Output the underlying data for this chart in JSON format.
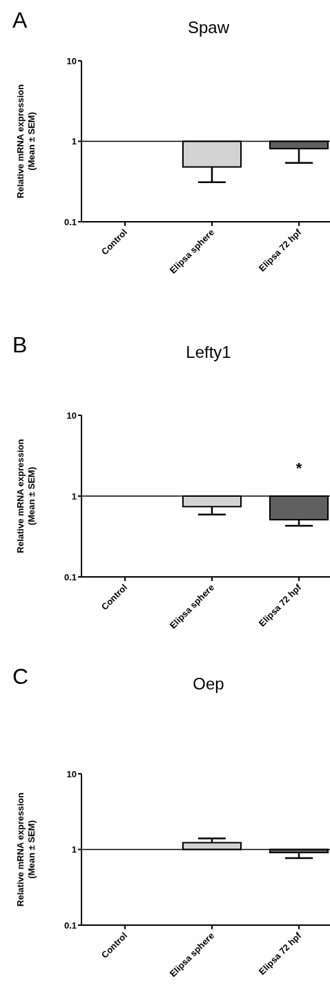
{
  "chart_data": [
    {
      "type": "bar",
      "title": "Spaw",
      "ylabel": "Relative mRNA expression\n(Mean ± SEM)",
      "annotations": [
        "A"
      ],
      "categories": [
        "Control",
        "Elipsa sphere",
        "Elipsa 72 hpf"
      ],
      "base": [
        null,
        1,
        1
      ],
      "values": [
        null,
        -0.52,
        -0.19
      ],
      "colors": [
        null,
        "#d3d3d3",
        "#606060"
      ],
      "errors": [
        null,
        [
          0.31,
          0.48
        ],
        [
          0.54,
          0.81
        ]
      ],
      "ylim": [
        0.1,
        10
      ],
      "yticks": [
        0.1,
        1,
        10
      ],
      "log": true,
      "ref_lines": [
        {
          "axis": "y",
          "value": 1
        }
      ]
    },
    {
      "type": "bar",
      "title": "Lefty1",
      "ylabel": "Relative mRNA expression\n(Mean ± SEM)",
      "annotations": [
        "B",
        "*"
      ],
      "categories": [
        "Control",
        "Elipsa sphere",
        "Elipsa 72 hpf"
      ],
      "base": [
        null,
        1,
        1
      ],
      "values": [
        null,
        -0.26,
        -0.49
      ],
      "colors": [
        null,
        "#d3d3d3",
        "#606060"
      ],
      "errors": [
        null,
        [
          0.59,
          0.74
        ],
        [
          0.43,
          0.51
        ]
      ],
      "ylim": [
        0.1,
        10
      ],
      "yticks": [
        0.1,
        1,
        10
      ],
      "log": true,
      "ref_lines": [
        {
          "axis": "y",
          "value": 1
        }
      ]
    },
    {
      "type": "bar",
      "title": "Oep",
      "ylabel": "Relative mRNA expression\n(Mean ± SEM)",
      "annotations": [
        "C"
      ],
      "categories": [
        "Control",
        "Elipsa sphere",
        "Elipsa 72 hpf"
      ],
      "base": [
        null,
        1,
        1
      ],
      "values": [
        null,
        0.23,
        -0.09
      ],
      "colors": [
        null,
        "#d3d3d3",
        "#606060"
      ],
      "errors": [
        null,
        [
          1.23,
          1.4
        ],
        [
          0.77,
          0.91
        ]
      ],
      "ylim": [
        0.1,
        10
      ],
      "yticks": [
        0.1,
        1,
        10
      ],
      "log": true,
      "ref_lines": [
        {
          "axis": "y",
          "value": 1
        }
      ]
    }
  ]
}
